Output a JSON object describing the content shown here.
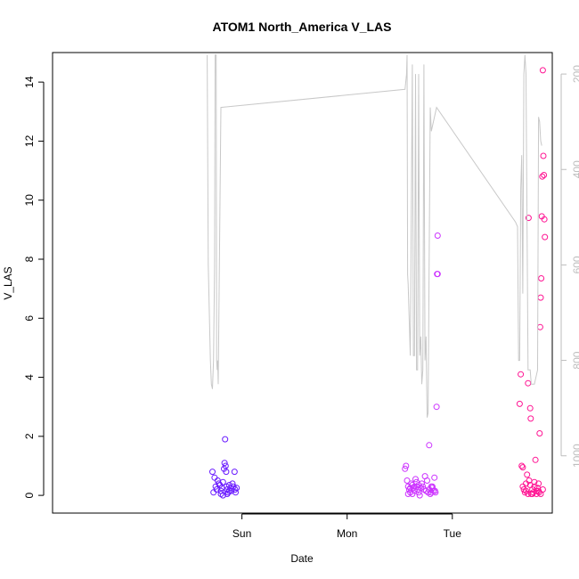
{
  "chart_data": {
    "type": "scatter",
    "title": "ATOM1 North_America V_LAS",
    "xlabel": "Date",
    "ylabel": "V_LAS",
    "xlim": [
      -1.8,
      2.95
    ],
    "ylim": [
      -0.6,
      15
    ],
    "y2lim": [
      1120,
      155
    ],
    "x_ticks": [
      {
        "label": "Sun",
        "value": 0
      },
      {
        "label": "Mon",
        "value": 1
      },
      {
        "label": "Tue",
        "value": 2
      }
    ],
    "y_ticks": [
      0,
      2,
      4,
      6,
      8,
      10,
      12,
      14
    ],
    "y2_ticks": [
      200,
      400,
      600,
      800,
      1000
    ],
    "series": [
      {
        "color": "#6a1bff",
        "marker": "circle",
        "points": [
          [
            -0.28,
            0.8
          ],
          [
            -0.27,
            0.1
          ],
          [
            -0.26,
            0.6
          ],
          [
            -0.25,
            0.3
          ],
          [
            -0.24,
            0.2
          ],
          [
            -0.23,
            0.5
          ],
          [
            -0.22,
            0.4
          ],
          [
            -0.21,
            0.35
          ],
          [
            -0.2,
            0.15
          ],
          [
            -0.19,
            0.25
          ],
          [
            -0.18,
            0.45
          ],
          [
            -0.17,
            0.9
          ],
          [
            -0.165,
            1.1
          ],
          [
            -0.16,
            1.9
          ],
          [
            -0.155,
            1.0
          ],
          [
            -0.15,
            0.8
          ],
          [
            -0.145,
            0.3
          ],
          [
            -0.14,
            0.2
          ],
          [
            -0.13,
            0.1
          ],
          [
            -0.12,
            0.35
          ],
          [
            -0.11,
            0.25
          ],
          [
            -0.1,
            0.15
          ],
          [
            -0.09,
            0.4
          ],
          [
            -0.08,
            0.3
          ],
          [
            -0.07,
            0.8
          ],
          [
            -0.065,
            0.2
          ],
          [
            -0.06,
            0.1
          ],
          [
            -0.05,
            0.25
          ],
          [
            -0.2,
            0.05
          ],
          [
            -0.18,
            0.0
          ],
          [
            -0.14,
            0.05
          ],
          [
            -0.12,
            0.15
          ]
        ]
      },
      {
        "color": "#cc33ff",
        "marker": "circle",
        "points": [
          [
            1.55,
            0.9
          ],
          [
            1.56,
            1.0
          ],
          [
            1.57,
            0.5
          ],
          [
            1.58,
            0.3
          ],
          [
            1.59,
            0.2
          ],
          [
            1.6,
            0.1
          ],
          [
            1.61,
            0.4
          ],
          [
            1.62,
            0.35
          ],
          [
            1.63,
            0.25
          ],
          [
            1.64,
            0.15
          ],
          [
            1.65,
            0.55
          ],
          [
            1.66,
            0.3
          ],
          [
            1.67,
            0.2
          ],
          [
            1.68,
            0.1
          ],
          [
            1.69,
            0.0
          ],
          [
            1.7,
            0.25
          ],
          [
            1.71,
            0.4
          ],
          [
            1.72,
            0.3
          ],
          [
            1.73,
            0.2
          ],
          [
            1.74,
            0.65
          ],
          [
            1.75,
            0.15
          ],
          [
            1.76,
            0.5
          ],
          [
            1.77,
            0.1
          ],
          [
            1.78,
            0.2
          ],
          [
            1.79,
            0.05
          ],
          [
            1.8,
            0.1
          ],
          [
            1.81,
            0.3
          ],
          [
            1.82,
            0.15
          ],
          [
            1.83,
            0.6
          ],
          [
            1.78,
            1.7
          ],
          [
            1.8,
            0.3
          ],
          [
            1.81,
            0.25
          ],
          [
            1.835,
            0.15
          ],
          [
            1.84,
            0.1
          ],
          [
            1.85,
            3.0
          ],
          [
            1.855,
            7.5
          ],
          [
            1.86,
            7.5
          ],
          [
            1.86,
            8.8
          ],
          [
            1.58,
            0.05
          ],
          [
            1.6,
            0.25
          ],
          [
            1.62,
            0.05
          ],
          [
            1.64,
            0.3
          ],
          [
            1.66,
            0.45
          ],
          [
            1.68,
            0.35
          ]
        ]
      },
      {
        "color": "#ff1493",
        "marker": "circle",
        "points": [
          [
            2.65,
            4.1
          ],
          [
            2.64,
            3.1
          ],
          [
            2.66,
            1.0
          ],
          [
            2.67,
            0.3
          ],
          [
            2.68,
            0.2
          ],
          [
            2.69,
            0.1
          ],
          [
            2.7,
            0.4
          ],
          [
            2.71,
            0.7
          ],
          [
            2.72,
            3.8
          ],
          [
            2.725,
            9.4
          ],
          [
            2.73,
            0.5
          ],
          [
            2.74,
            2.95
          ],
          [
            2.745,
            2.6
          ],
          [
            2.75,
            0.05
          ],
          [
            2.76,
            0.2
          ],
          [
            2.77,
            0.1
          ],
          [
            2.78,
            0.3
          ],
          [
            2.79,
            1.2
          ],
          [
            2.8,
            0.15
          ],
          [
            2.81,
            0.25
          ],
          [
            2.82,
            0.4
          ],
          [
            2.825,
            0.1
          ],
          [
            2.83,
            2.1
          ],
          [
            2.835,
            5.7
          ],
          [
            2.84,
            6.7
          ],
          [
            2.845,
            7.35
          ],
          [
            2.85,
            9.45
          ],
          [
            2.855,
            10.8
          ],
          [
            2.86,
            14.4
          ],
          [
            2.865,
            11.5
          ],
          [
            2.87,
            10.85
          ],
          [
            2.875,
            9.35
          ],
          [
            2.88,
            8.75
          ],
          [
            2.67,
            0.95
          ],
          [
            2.7,
            0.15
          ],
          [
            2.72,
            0.05
          ],
          [
            2.74,
            0.35
          ],
          [
            2.76,
            0.05
          ],
          [
            2.78,
            0.45
          ],
          [
            2.8,
            0.05
          ],
          [
            2.82,
            0.15
          ],
          [
            2.84,
            0.05
          ],
          [
            2.86,
            0.2
          ]
        ]
      },
      {
        "color": "#c8c8c8",
        "marker": "line",
        "axis": "right",
        "points": [
          [
            -0.33,
            160
          ],
          [
            -0.32,
            600
          ],
          [
            -0.3,
            800
          ],
          [
            -0.29,
            850
          ],
          [
            -0.28,
            860
          ],
          [
            -0.27,
            800
          ],
          [
            -0.26,
            600
          ],
          [
            -0.255,
            160
          ],
          [
            -0.245,
            160
          ],
          [
            -0.24,
            800
          ],
          [
            -0.235,
            820
          ],
          [
            -0.23,
            800
          ],
          [
            -0.225,
            850
          ],
          [
            -0.2,
            270
          ],
          [
            1.55,
            232
          ],
          [
            1.565,
            200
          ],
          [
            1.57,
            160
          ],
          [
            1.575,
            620
          ],
          [
            1.58,
            640
          ],
          [
            1.6,
            790
          ],
          [
            1.62,
            180
          ],
          [
            1.63,
            790
          ],
          [
            1.64,
            790
          ],
          [
            1.65,
            200
          ],
          [
            1.66,
            820
          ],
          [
            1.67,
            820
          ],
          [
            1.68,
            200
          ],
          [
            1.69,
            790
          ],
          [
            1.7,
            750
          ],
          [
            1.71,
            850
          ],
          [
            1.72,
            820
          ],
          [
            1.73,
            180
          ],
          [
            1.74,
            800
          ],
          [
            1.75,
            750
          ],
          [
            1.76,
            920
          ],
          [
            1.77,
            910
          ],
          [
            1.79,
            270
          ],
          [
            1.8,
            320
          ],
          [
            1.85,
            270
          ],
          [
            2.6,
            510
          ],
          [
            2.62,
            520
          ],
          [
            2.63,
            800
          ],
          [
            2.64,
            800
          ],
          [
            2.65,
            440
          ],
          [
            2.66,
            370
          ],
          [
            2.67,
            660
          ],
          [
            2.68,
            200
          ],
          [
            2.69,
            160
          ],
          [
            2.7,
            200
          ],
          [
            2.72,
            820
          ],
          [
            2.74,
            820
          ],
          [
            2.75,
            850
          ],
          [
            2.78,
            850
          ],
          [
            2.81,
            820
          ],
          [
            2.82,
            290
          ],
          [
            2.83,
            300
          ],
          [
            2.84,
            340
          ],
          [
            2.85,
            350
          ]
        ]
      }
    ]
  }
}
